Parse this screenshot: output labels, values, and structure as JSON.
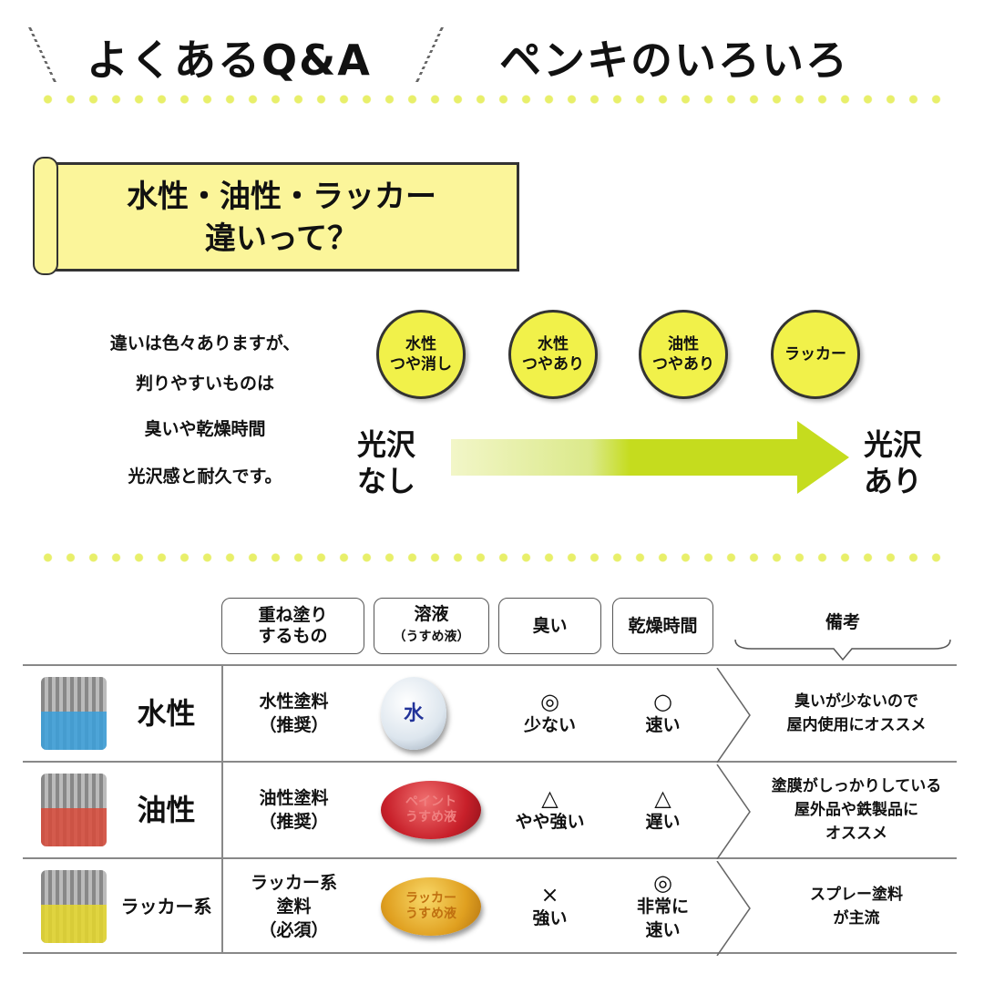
{
  "header": {
    "left_title": "よくあるQ&A",
    "right_title": "ペンキのいろいろ"
  },
  "question": {
    "line1": "水性・油性・ラッカー",
    "line2": "違いって？"
  },
  "lead": [
    "違いは色々ありますが、",
    "判りやすいものは",
    "臭いや乾燥時間",
    "光沢感と耐久です。"
  ],
  "gloss_scale": {
    "low": [
      "光沢",
      "なし"
    ],
    "high": [
      "光沢",
      "あり"
    ],
    "items": [
      [
        "水性",
        "つや消し"
      ],
      [
        "水性",
        "つやあり"
      ],
      [
        "油性",
        "つやあり"
      ],
      [
        "ラッカー"
      ]
    ]
  },
  "colors": {
    "accent_yellow": "#f1f14a",
    "arrow_green": "#c5dc1e",
    "water": "#3aa0dc",
    "oil": "#d84a3a",
    "lacquer": "#e6d82a"
  },
  "table": {
    "headers": [
      [
        "重ね塗り",
        "するもの"
      ],
      [
        "溶液",
        "（うすめ液）"
      ],
      [
        "臭い"
      ],
      [
        "乾燥時間"
      ],
      [
        "備考"
      ]
    ],
    "rows": [
      {
        "type": "水性",
        "paint": [
          "水性塗料",
          "（推奨）"
        ],
        "solvent": [
          "水"
        ],
        "smell_mark": "◎",
        "smell": "少ない",
        "dry_mark": "○",
        "dry": [
          "速い"
        ],
        "note": [
          "臭いが少ないので",
          "屋内使用にオススメ"
        ]
      },
      {
        "type": "油性",
        "paint": [
          "油性塗料",
          "（推奨）"
        ],
        "solvent": [
          "ペイント",
          "うすめ液"
        ],
        "smell_mark": "△",
        "smell": "やや強い",
        "dry_mark": "△",
        "dry": [
          "遅い"
        ],
        "note": [
          "塗膜がしっかりしている",
          "屋外品や鉄製品に",
          "オススメ"
        ]
      },
      {
        "type": "ラッカー系",
        "paint": [
          "ラッカー系",
          "塗料",
          "（必須）"
        ],
        "solvent": [
          "ラッカー",
          "うすめ液"
        ],
        "smell_mark": "×",
        "smell": "強い",
        "dry_mark": "◎",
        "dry": [
          "非常に",
          "速い"
        ],
        "note": [
          "スプレー塗料",
          "が主流"
        ]
      }
    ]
  }
}
